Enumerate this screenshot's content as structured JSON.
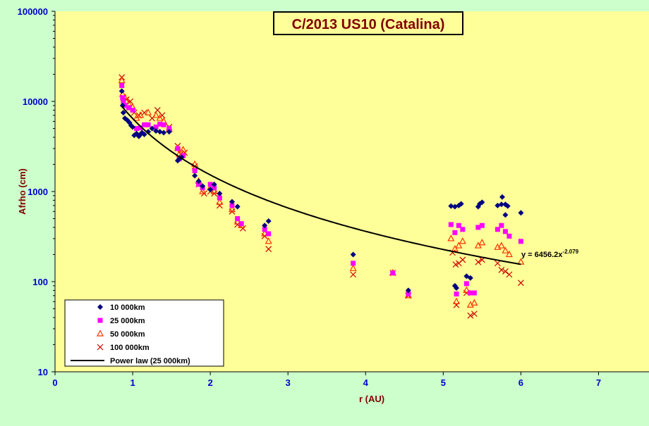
{
  "chart_data": {
    "type": "scatter",
    "title": "C/2013 US10 (Catalina)",
    "xlabel": "r (AU)",
    "ylabel": "Afrho (cm)",
    "xlim": [
      0,
      7.65
    ],
    "ylim": [
      10,
      100000
    ],
    "y_scale": "log",
    "x_ticks": [
      0,
      1,
      2,
      3,
      4,
      5,
      6,
      7
    ],
    "y_ticks": [
      10,
      100,
      1000,
      10000,
      100000
    ],
    "x_tick_labels": [
      "0",
      "1",
      "2",
      "3",
      "4",
      "5",
      "6",
      "7"
    ],
    "y_tick_labels": [
      "10",
      "100",
      "1000",
      "10000",
      "100000"
    ],
    "grid": false,
    "legend_position": "bottom-left",
    "colors": {
      "plot_background": "#ffff99",
      "outer_background": "#ccffcc",
      "axis_text": "#0000cc",
      "title_text": "#800000",
      "axis_label": "#800000"
    },
    "series": [
      {
        "name": "10 000km",
        "marker": "diamond",
        "color": "#000080",
        "points": [
          [
            0.86,
            13000
          ],
          [
            0.87,
            9000
          ],
          [
            0.88,
            7500
          ],
          [
            0.9,
            6500
          ],
          [
            0.93,
            6200
          ],
          [
            0.96,
            5800
          ],
          [
            0.98,
            5400
          ],
          [
            1.0,
            5200
          ],
          [
            1.02,
            4200
          ],
          [
            1.05,
            4400
          ],
          [
            1.08,
            4100
          ],
          [
            1.1,
            4300
          ],
          [
            1.12,
            4500
          ],
          [
            1.15,
            4300
          ],
          [
            1.2,
            4600
          ],
          [
            1.25,
            5000
          ],
          [
            1.3,
            4700
          ],
          [
            1.35,
            4600
          ],
          [
            1.4,
            4500
          ],
          [
            1.47,
            4600
          ],
          [
            1.58,
            2200
          ],
          [
            1.6,
            2300
          ],
          [
            1.63,
            2400
          ],
          [
            1.8,
            1500
          ],
          [
            1.85,
            1300
          ],
          [
            1.9,
            1150
          ],
          [
            2.0,
            1050
          ],
          [
            2.05,
            1200
          ],
          [
            2.12,
            950
          ],
          [
            2.28,
            770
          ],
          [
            2.35,
            680
          ],
          [
            2.7,
            420
          ],
          [
            2.75,
            470
          ],
          [
            3.84,
            200
          ],
          [
            4.55,
            80
          ],
          [
            5.1,
            690
          ],
          [
            5.15,
            680
          ],
          [
            5.2,
            700
          ],
          [
            5.23,
            730
          ],
          [
            5.15,
            90
          ],
          [
            5.17,
            85
          ],
          [
            5.3,
            115
          ],
          [
            5.35,
            110
          ],
          [
            5.45,
            680
          ],
          [
            5.47,
            730
          ],
          [
            5.5,
            760
          ],
          [
            5.7,
            700
          ],
          [
            5.75,
            720
          ],
          [
            5.76,
            870
          ],
          [
            5.8,
            720
          ],
          [
            5.83,
            690
          ],
          [
            5.8,
            550
          ],
          [
            6.0,
            580
          ]
        ]
      },
      {
        "name": "25 000km",
        "marker": "square",
        "color": "#ff00ff",
        "points": [
          [
            0.86,
            15000
          ],
          [
            0.87,
            11000
          ],
          [
            0.88,
            10000
          ],
          [
            0.9,
            9000
          ],
          [
            0.95,
            8500
          ],
          [
            1.0,
            8000
          ],
          [
            1.05,
            5000
          ],
          [
            1.1,
            5100
          ],
          [
            1.15,
            5500
          ],
          [
            1.2,
            5500
          ],
          [
            1.3,
            5200
          ],
          [
            1.35,
            5600
          ],
          [
            1.4,
            5500
          ],
          [
            1.47,
            5000
          ],
          [
            1.58,
            3000
          ],
          [
            1.6,
            2300
          ],
          [
            1.65,
            2500
          ],
          [
            1.8,
            1700
          ],
          [
            1.85,
            1200
          ],
          [
            1.9,
            1100
          ],
          [
            2.0,
            1200
          ],
          [
            2.05,
            1100
          ],
          [
            2.12,
            850
          ],
          [
            2.28,
            700
          ],
          [
            2.35,
            500
          ],
          [
            2.4,
            440
          ],
          [
            2.7,
            380
          ],
          [
            2.75,
            340
          ],
          [
            3.84,
            160
          ],
          [
            4.35,
            125
          ],
          [
            4.55,
            73
          ],
          [
            5.1,
            430
          ],
          [
            5.15,
            350
          ],
          [
            5.2,
            420
          ],
          [
            5.25,
            380
          ],
          [
            5.17,
            73
          ],
          [
            5.3,
            95
          ],
          [
            5.35,
            75
          ],
          [
            5.4,
            75
          ],
          [
            5.45,
            400
          ],
          [
            5.5,
            420
          ],
          [
            5.7,
            380
          ],
          [
            5.75,
            420
          ],
          [
            5.8,
            360
          ],
          [
            5.85,
            320
          ],
          [
            6.0,
            280
          ]
        ]
      },
      {
        "name": "50 000km",
        "marker": "triangle",
        "color": "#ff3300",
        "points": [
          [
            0.86,
            17000
          ],
          [
            0.87,
            12000
          ],
          [
            0.9,
            11000
          ],
          [
            0.95,
            9500
          ],
          [
            1.0,
            8600
          ],
          [
            1.05,
            6500
          ],
          [
            1.1,
            7000
          ],
          [
            1.2,
            7500
          ],
          [
            1.3,
            7000
          ],
          [
            1.35,
            6500
          ],
          [
            1.4,
            6000
          ],
          [
            1.47,
            4900
          ],
          [
            1.58,
            3000
          ],
          [
            1.6,
            2600
          ],
          [
            1.65,
            2900
          ],
          [
            1.8,
            2000
          ],
          [
            1.85,
            1300
          ],
          [
            1.9,
            1000
          ],
          [
            2.0,
            1100
          ],
          [
            2.05,
            1000
          ],
          [
            2.12,
            760
          ],
          [
            2.28,
            630
          ],
          [
            2.35,
            460
          ],
          [
            2.4,
            420
          ],
          [
            2.7,
            340
          ],
          [
            2.75,
            280
          ],
          [
            3.84,
            140
          ],
          [
            4.35,
            125
          ],
          [
            4.55,
            70
          ],
          [
            5.1,
            300
          ],
          [
            5.15,
            230
          ],
          [
            5.2,
            250
          ],
          [
            5.25,
            280
          ],
          [
            5.17,
            60
          ],
          [
            5.3,
            80
          ],
          [
            5.35,
            55
          ],
          [
            5.4,
            58
          ],
          [
            5.45,
            250
          ],
          [
            5.5,
            270
          ],
          [
            5.7,
            240
          ],
          [
            5.75,
            250
          ],
          [
            5.8,
            220
          ],
          [
            5.85,
            200
          ],
          [
            6.0,
            165
          ]
        ]
      },
      {
        "name": "100 000km",
        "marker": "x",
        "color": "#cc0000",
        "points": [
          [
            0.86,
            18500
          ],
          [
            0.88,
            11000
          ],
          [
            0.92,
            10500
          ],
          [
            0.97,
            10000
          ],
          [
            1.02,
            7500
          ],
          [
            1.08,
            7000
          ],
          [
            1.15,
            7500
          ],
          [
            1.25,
            6500
          ],
          [
            1.32,
            8000
          ],
          [
            1.38,
            7000
          ],
          [
            1.47,
            5200
          ],
          [
            1.58,
            3200
          ],
          [
            1.62,
            2600
          ],
          [
            1.67,
            2700
          ],
          [
            1.8,
            1900
          ],
          [
            1.85,
            1200
          ],
          [
            1.92,
            950
          ],
          [
            2.0,
            1000
          ],
          [
            2.05,
            950
          ],
          [
            2.12,
            700
          ],
          [
            2.28,
            600
          ],
          [
            2.35,
            430
          ],
          [
            2.42,
            390
          ],
          [
            2.7,
            320
          ],
          [
            2.75,
            230
          ],
          [
            3.84,
            120
          ],
          [
            4.35,
            125
          ],
          [
            4.55,
            70
          ],
          [
            5.12,
            210
          ],
          [
            5.16,
            155
          ],
          [
            5.2,
            160
          ],
          [
            5.25,
            175
          ],
          [
            5.17,
            55
          ],
          [
            5.3,
            75
          ],
          [
            5.35,
            42
          ],
          [
            5.4,
            44
          ],
          [
            5.45,
            165
          ],
          [
            5.5,
            175
          ],
          [
            5.7,
            160
          ],
          [
            5.75,
            135
          ],
          [
            5.8,
            130
          ],
          [
            5.85,
            120
          ],
          [
            6.0,
            97
          ]
        ]
      },
      {
        "name": "Power law (25 000km)",
        "type": "line",
        "color": "#000000",
        "fit": {
          "a": 6456.2,
          "b": -2.079,
          "x_range": [
            0.86,
            6.0
          ]
        },
        "annotation": {
          "prefix": "y = 6456.2x",
          "exponent": "-2.079",
          "x": 6.0,
          "y": 195
        }
      }
    ]
  }
}
